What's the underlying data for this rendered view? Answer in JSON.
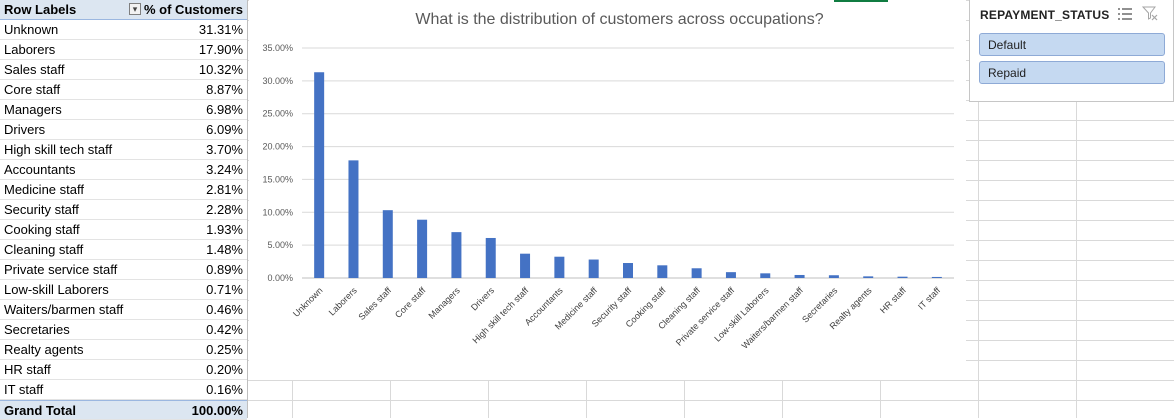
{
  "pivot": {
    "header_label": "Row Labels",
    "header_value": "% of Customers",
    "rows": [
      {
        "label": "Unknown",
        "value": "31.31%"
      },
      {
        "label": "Laborers",
        "value": "17.90%"
      },
      {
        "label": "Sales staff",
        "value": "10.32%"
      },
      {
        "label": "Core staff",
        "value": "8.87%"
      },
      {
        "label": "Managers",
        "value": "6.98%"
      },
      {
        "label": "Drivers",
        "value": "6.09%"
      },
      {
        "label": "High skill tech staff",
        "value": "3.70%"
      },
      {
        "label": "Accountants",
        "value": "3.24%"
      },
      {
        "label": "Medicine staff",
        "value": "2.81%"
      },
      {
        "label": "Security staff",
        "value": "2.28%"
      },
      {
        "label": "Cooking staff",
        "value": "1.93%"
      },
      {
        "label": "Cleaning staff",
        "value": "1.48%"
      },
      {
        "label": "Private service staff",
        "value": "0.89%"
      },
      {
        "label": "Low-skill Laborers",
        "value": "0.71%"
      },
      {
        "label": "Waiters/barmen staff",
        "value": "0.46%"
      },
      {
        "label": "Secretaries",
        "value": "0.42%"
      },
      {
        "label": "Realty agents",
        "value": "0.25%"
      },
      {
        "label": "HR staff",
        "value": "0.20%"
      },
      {
        "label": "IT staff",
        "value": "0.16%"
      }
    ],
    "total_label": "Grand Total",
    "total_value": "100.00%",
    "filter_icon": "sort-desc-filter-icon"
  },
  "chart_data": {
    "type": "bar",
    "title": "What is the distribution of customers across occupations?",
    "categories": [
      "Unknown",
      "Laborers",
      "Sales staff",
      "Core staff",
      "Managers",
      "Drivers",
      "High skill tech staff",
      "Accountants",
      "Medicine staff",
      "Security staff",
      "Cooking staff",
      "Cleaning staff",
      "Private service staff",
      "Low-skill Laborers",
      "Waiters/barmen staff",
      "Secretaries",
      "Realty agents",
      "HR staff",
      "IT staff"
    ],
    "values": [
      31.31,
      17.9,
      10.32,
      8.87,
      6.98,
      6.09,
      3.7,
      3.24,
      2.81,
      2.28,
      1.93,
      1.48,
      0.89,
      0.71,
      0.46,
      0.42,
      0.25,
      0.2,
      0.16
    ],
    "ylim": [
      0,
      35
    ],
    "yticks": [
      "0.00%",
      "5.00%",
      "10.00%",
      "15.00%",
      "20.00%",
      "25.00%",
      "30.00%",
      "35.00%"
    ],
    "ytick_values": [
      0,
      5,
      10,
      15,
      20,
      25,
      30,
      35
    ],
    "bar_color": "#4472c4",
    "grid": true,
    "legend": "none"
  },
  "slicer": {
    "title": "REPAYMENT_STATUS",
    "items": [
      "Default",
      "Repaid"
    ],
    "multiselect_icon": "multi-select-icon",
    "clear_icon": "clear-filter-icon",
    "item_color": "#c5d9f1"
  }
}
